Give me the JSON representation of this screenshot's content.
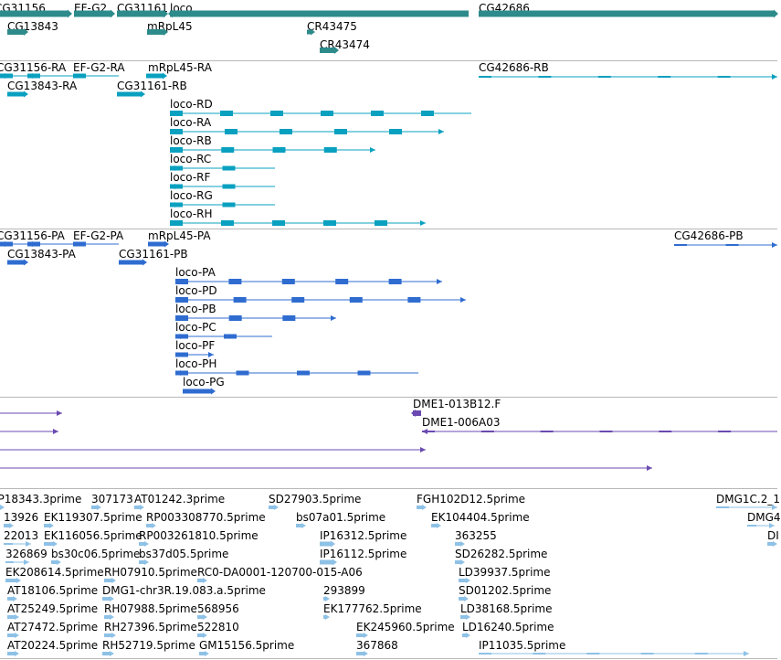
{
  "colors": {
    "gene": "#2e8b8b",
    "transcript": "#0aa0c0",
    "protein": "#2f6cd0",
    "clone": "#6a4ab0",
    "est": "#8ec1e6",
    "separator": "#b8b8b8"
  },
  "tracks": [
    {
      "id": "genes",
      "name": "gene-track",
      "features": [
        {
          "label": "CG31156"
        },
        {
          "label": "EF-G2"
        },
        {
          "label": "CG31161"
        },
        {
          "label": "loco"
        },
        {
          "label": "CG42686"
        },
        {
          "label": "CG13843"
        },
        {
          "label": "mRpL45"
        },
        {
          "label": "CR43475"
        },
        {
          "label": "CR43474"
        }
      ]
    },
    {
      "id": "transcripts",
      "name": "transcript-track",
      "features": [
        {
          "label": "CG31156-RA"
        },
        {
          "label": "EF-G2-RA"
        },
        {
          "label": "mRpL45-RA"
        },
        {
          "label": "CG42686-RB"
        },
        {
          "label": "CG13843-RA"
        },
        {
          "label": "CG31161-RB"
        },
        {
          "label": "loco-RD"
        },
        {
          "label": "loco-RA"
        },
        {
          "label": "loco-RB"
        },
        {
          "label": "loco-RC"
        },
        {
          "label": "loco-RF"
        },
        {
          "label": "loco-RG"
        },
        {
          "label": "loco-RH"
        }
      ]
    },
    {
      "id": "proteins",
      "name": "protein-track",
      "features": [
        {
          "label": "CG31156-PA"
        },
        {
          "label": "EF-G2-PA"
        },
        {
          "label": "mRpL45-PA"
        },
        {
          "label": "CG42686-PB"
        },
        {
          "label": "CG13843-PA"
        },
        {
          "label": "CG31161-PB"
        },
        {
          "label": "loco-PA"
        },
        {
          "label": "loco-PD"
        },
        {
          "label": "loco-PB"
        },
        {
          "label": "loco-PC"
        },
        {
          "label": "loco-PF"
        },
        {
          "label": "loco-PH"
        },
        {
          "label": "loco-PG"
        }
      ]
    },
    {
      "id": "clones",
      "name": "clone-track",
      "features": [
        {
          "label": "DME1-013B12.F"
        },
        {
          "label": "DME1-006A03"
        }
      ]
    },
    {
      "id": "ests",
      "name": "est-track",
      "features": [
        {
          "label": "IP18343.3prime"
        },
        {
          "label": "307173"
        },
        {
          "label": "AT01242.3prime"
        },
        {
          "label": "SD27903.5prime"
        },
        {
          "label": "FGH102D12.5prime"
        },
        {
          "label": "DMG1C.2_1"
        },
        {
          "label": "13926"
        },
        {
          "label": "EK119307.5prime"
        },
        {
          "label": "RP003308770.5prime"
        },
        {
          "label": "bs07a01.5prime"
        },
        {
          "label": "EK104404.5prime"
        },
        {
          "label": "DMG4"
        },
        {
          "label": "22013"
        },
        {
          "label": "EK116056.5prime"
        },
        {
          "label": "RP003261810.5prime"
        },
        {
          "label": "IP16312.5prime"
        },
        {
          "label": "363255"
        },
        {
          "label": "DI"
        },
        {
          "label": "326869"
        },
        {
          "label": "bs30c06.5prime"
        },
        {
          "label": "bs37d05.5prime"
        },
        {
          "label": "IP16112.5prime"
        },
        {
          "label": "SD26282.5prime"
        },
        {
          "label": "EK208614.5prime"
        },
        {
          "label": "RH07910.5prime"
        },
        {
          "label": "RC0-DA0001-120700-015-A06"
        },
        {
          "label": "LD39937.5prime"
        },
        {
          "label": "AT18106.5prime"
        },
        {
          "label": "DMG1-chr3R.19.083.a.5prime"
        },
        {
          "label": "293899"
        },
        {
          "label": "SD01202.5prime"
        },
        {
          "label": "AT25249.5prime"
        },
        {
          "label": "RH07988.5prime"
        },
        {
          "label": "568956"
        },
        {
          "label": "EK177762.5prime"
        },
        {
          "label": "LD38168.5prime"
        },
        {
          "label": "AT27472.5prime"
        },
        {
          "label": "RH27396.5prime"
        },
        {
          "label": "522810"
        },
        {
          "label": "EK245960.5prime"
        },
        {
          "label": "LD16240.5prime"
        },
        {
          "label": "AT20224.5prime"
        },
        {
          "label": "RH52719.5prime"
        },
        {
          "label": "GM15156.5prime"
        },
        {
          "label": "367868"
        },
        {
          "label": "IP11035.5prime"
        }
      ]
    }
  ]
}
